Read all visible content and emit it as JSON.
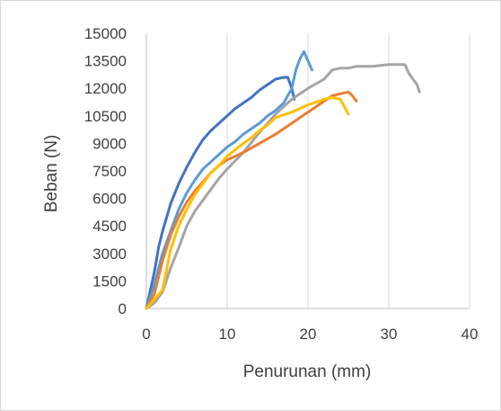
{
  "chart_data": {
    "type": "line",
    "title": "",
    "xlabel": "Penurunan (mm)",
    "ylabel": "Beban (N)",
    "xlim": [
      0,
      40
    ],
    "ylim": [
      0,
      15000
    ],
    "xticks": [
      0,
      10,
      20,
      30,
      40
    ],
    "yticks": [
      0,
      1500,
      3000,
      4500,
      6000,
      7500,
      9000,
      10500,
      12000,
      13500,
      15000
    ],
    "grid": "vertical",
    "legend": "none",
    "series": [
      {
        "color": "#4472c4",
        "x": [
          0,
          0.5,
          1,
          1.5,
          2,
          3,
          4,
          5,
          6,
          7,
          8,
          9,
          10,
          11,
          12,
          13,
          14,
          15,
          16,
          17,
          17.5,
          18,
          18.3
        ],
        "y": [
          0,
          1000,
          2000,
          3300,
          4200,
          5700,
          6800,
          7700,
          8500,
          9200,
          9700,
          10100,
          10500,
          10900,
          11200,
          11500,
          11900,
          12200,
          12500,
          12600,
          12600,
          12000,
          11400
        ]
      },
      {
        "color": "#5b9bd5",
        "x": [
          0,
          1,
          2,
          3,
          4,
          5,
          6,
          7,
          8,
          9,
          10,
          11,
          12,
          13,
          14,
          15,
          16,
          17,
          18,
          18.5,
          19,
          19.5,
          20,
          20.5
        ],
        "y": [
          0,
          1300,
          3000,
          4200,
          5400,
          6300,
          7000,
          7600,
          8000,
          8400,
          8800,
          9100,
          9500,
          9800,
          10100,
          10500,
          10800,
          11200,
          12000,
          13000,
          13600,
          14000,
          13500,
          13000
        ]
      },
      {
        "color": "#a5a5a5",
        "x": [
          0,
          1,
          2,
          3,
          4,
          5,
          6,
          7,
          8,
          9,
          10,
          12,
          14,
          16,
          18,
          20,
          22,
          23,
          24,
          25,
          26,
          28,
          30,
          31,
          32,
          32.5,
          33,
          33.5,
          33.8
        ],
        "y": [
          0,
          300,
          900,
          2200,
          3300,
          4500,
          5300,
          5900,
          6500,
          7100,
          7600,
          8500,
          9600,
          10600,
          11400,
          12000,
          12500,
          13000,
          13100,
          13100,
          13200,
          13200,
          13300,
          13300,
          13300,
          12800,
          12500,
          12200,
          11800
        ]
      },
      {
        "color": "#ed7d31",
        "x": [
          0,
          1,
          2,
          3,
          4,
          5,
          6,
          7,
          8,
          9,
          10,
          12,
          14,
          16,
          18,
          20,
          22,
          23,
          24,
          25,
          25.5,
          26
        ],
        "y": [
          0,
          800,
          2600,
          4000,
          5000,
          5800,
          6400,
          6900,
          7400,
          7800,
          8100,
          8500,
          9000,
          9500,
          10100,
          10700,
          11300,
          11600,
          11700,
          11800,
          11600,
          11300
        ]
      },
      {
        "color": "#ffc000",
        "x": [
          0,
          1,
          2,
          3,
          4,
          5,
          6,
          7,
          8,
          9,
          10,
          12,
          13,
          14,
          15,
          16,
          18,
          20,
          22,
          23,
          24,
          24.5,
          25
        ],
        "y": [
          0,
          500,
          1000,
          3200,
          4500,
          5400,
          6200,
          6800,
          7400,
          7800,
          8300,
          9000,
          9300,
          9700,
          10000,
          10400,
          10700,
          11100,
          11400,
          11500,
          11400,
          11000,
          10600
        ]
      }
    ]
  }
}
